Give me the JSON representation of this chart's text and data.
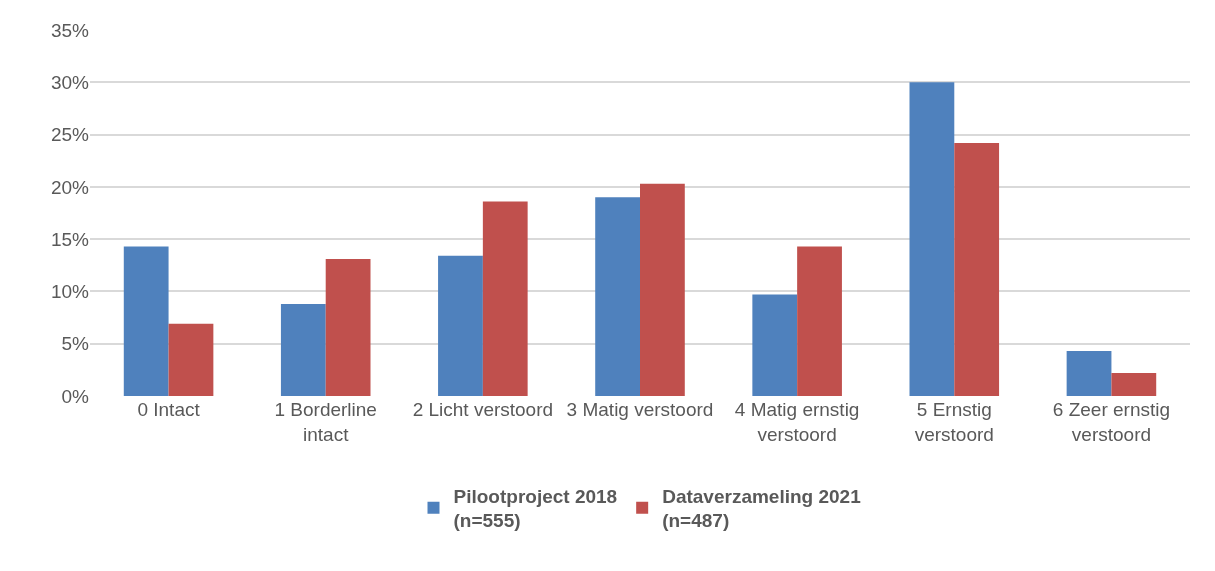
{
  "chart_data": {
    "type": "bar",
    "categories": [
      "0 Intact",
      "1 Borderline intact",
      "2 Licht verstoord",
      "3 Matig verstoord",
      "4 Matig ernstig verstoord",
      "5 Ernstig verstoord",
      "6 Zeer ernstig verstoord"
    ],
    "series": [
      {
        "name": "Pilootproject 2018\n(n=555)",
        "color": "#4f81bd",
        "values": [
          14.3,
          8.8,
          13.4,
          19.0,
          9.7,
          30.0,
          4.3
        ]
      },
      {
        "name": "Dataverzameling 2021\n(n=487)",
        "color": "#c0504d",
        "values": [
          6.9,
          13.1,
          18.6,
          20.3,
          14.3,
          24.2,
          2.2
        ]
      }
    ],
    "ylim": [
      0,
      35
    ],
    "yticks": [
      {
        "value": 0,
        "label": "0%"
      },
      {
        "value": 5,
        "label": "5%"
      },
      {
        "value": 10,
        "label": "10%"
      },
      {
        "value": 15,
        "label": "15%"
      },
      {
        "value": 20,
        "label": "20%"
      },
      {
        "value": 25,
        "label": "25%"
      },
      {
        "value": 30,
        "label": "30%"
      },
      {
        "value": 35,
        "label": "35%"
      }
    ],
    "grid": "y",
    "legend": "bottom"
  }
}
